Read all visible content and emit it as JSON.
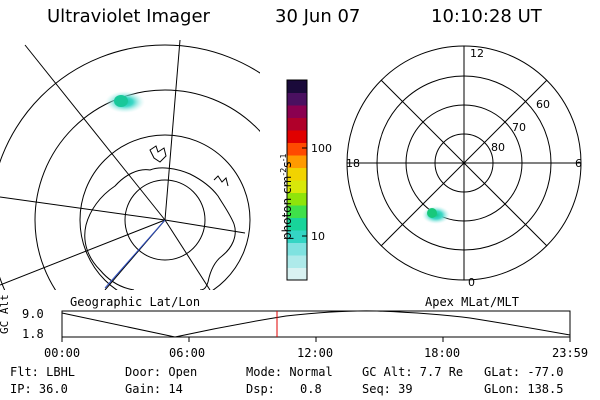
{
  "header": {
    "title": "Ultraviolet Imager",
    "date": "30 Jun 07",
    "time": "10:10:28 UT"
  },
  "left_panel": {
    "label": "Geographic Lat/Lon"
  },
  "right_panel": {
    "label": "Apex MLat/MLT",
    "mlt_labels": {
      "top": "12",
      "right": "6",
      "bottom": "0",
      "left": "18"
    },
    "lat_labels": [
      "60",
      "70",
      "80"
    ]
  },
  "colorbar": {
    "unit_main": "photon cm",
    "unit_sup1": "-2",
    "unit_s": "s",
    "unit_sup2": "-1",
    "ticks": [
      "100",
      "10"
    ],
    "colors": [
      "#d9f2f2",
      "#aeeaea",
      "#7fe2e0",
      "#34d5c4",
      "#18d49a",
      "#3fe04a",
      "#8fe40a",
      "#d8e80a",
      "#f1d300",
      "#ff9a00",
      "#ff4a00",
      "#e00000",
      "#b0002a",
      "#8a0050",
      "#4a1060",
      "#1a0a3a"
    ]
  },
  "timeline": {
    "axis_label": "GC Alt",
    "y_ticks": [
      "9.0",
      "1.8"
    ],
    "x_ticks": [
      "00:00",
      "06:00",
      "12:00",
      "18:00",
      "23:59"
    ],
    "marker_time": "10:10:28"
  },
  "info": {
    "filter": "Flt: LBHL",
    "ip": "IP: 36.0",
    "door": "Door: Open",
    "gain": "Gain: 14",
    "mode": "Mode: Normal",
    "dsp_label": "Dsp:",
    "dsp_value": "0.8",
    "gc_alt": "GC Alt: 7.7 Re",
    "seq": "Seq: 39",
    "glat": "GLat: -77.0",
    "glon": "GLon: 138.5"
  }
}
